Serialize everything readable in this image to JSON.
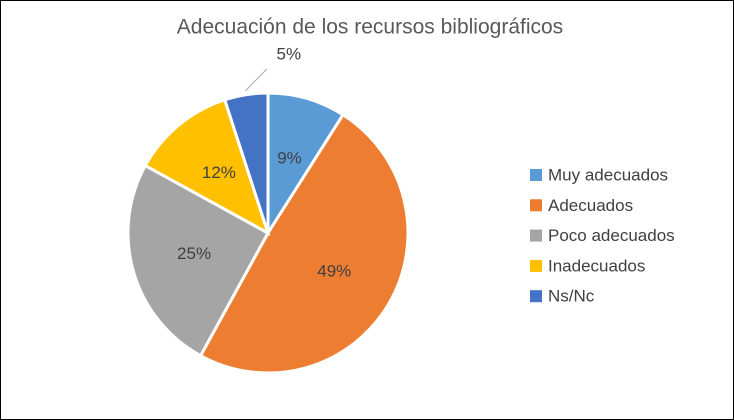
{
  "chart_data": {
    "type": "pie",
    "title": "Adecuación de los recursos bibliográficos",
    "categories": [
      "Muy adecuados",
      "Adecuados",
      "Poco adecuados",
      "Inadecuados",
      "Ns/Nc"
    ],
    "values": [
      9,
      49,
      25,
      12,
      5
    ],
    "value_labels": [
      "9%",
      "49%",
      "25%",
      "12%",
      "5%"
    ],
    "colors": [
      "#5b9bd5",
      "#ed7d31",
      "#a5a5a5",
      "#ffc000",
      "#4472c4"
    ],
    "legend": "right"
  }
}
